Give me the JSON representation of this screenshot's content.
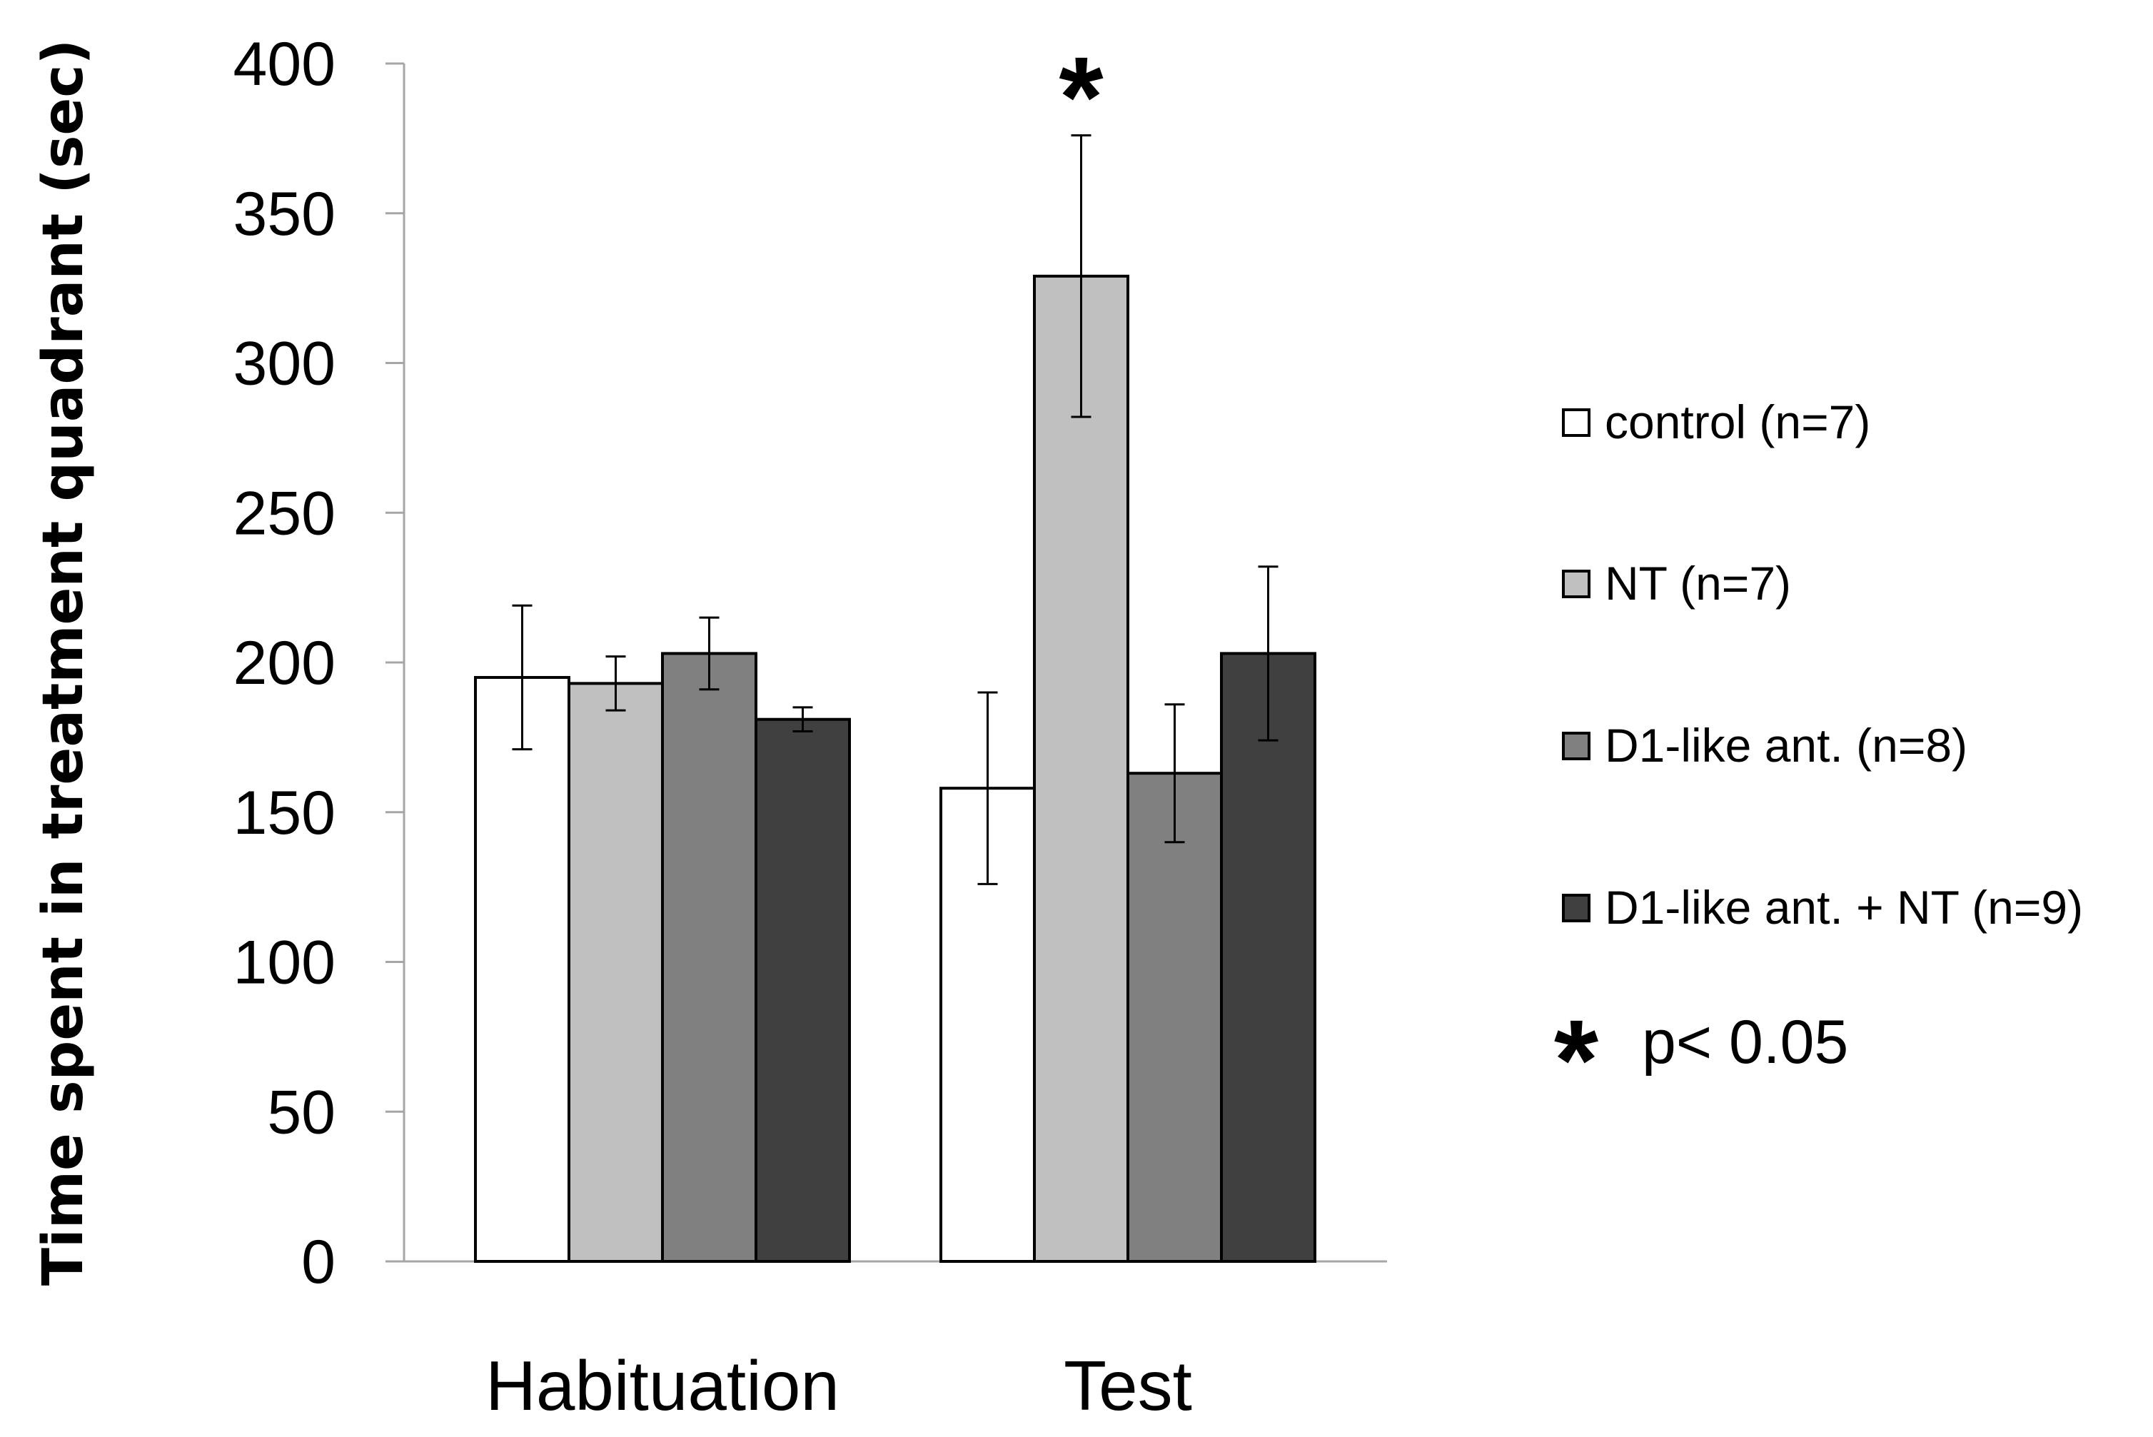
{
  "chart_data": {
    "type": "bar",
    "title": "",
    "xlabel": "",
    "ylabel": "Time spent in treatment quadrant (sec)",
    "ylim": [
      0,
      400
    ],
    "yticks": [
      0,
      50,
      100,
      150,
      200,
      250,
      300,
      350,
      400
    ],
    "grid": false,
    "categories": [
      "Habituation",
      "Test"
    ],
    "series": [
      {
        "name": "control (n=7)",
        "color": "#ffffff",
        "values": [
          195,
          158
        ],
        "errors": [
          24,
          32
        ]
      },
      {
        "name": "NT (n=7)",
        "color": "#c0c0c0",
        "values": [
          193,
          329
        ],
        "errors": [
          9,
          47
        ]
      },
      {
        "name": "D1-like ant. (n=8)",
        "color": "#808080",
        "values": [
          203,
          163
        ],
        "errors": [
          12,
          23
        ]
      },
      {
        "name": "D1-like ant. + NT (n=9)",
        "color": "#404040",
        "values": [
          181,
          203
        ],
        "errors": [
          4,
          29
        ]
      }
    ],
    "annotations": [
      {
        "text": "*",
        "category": "Test",
        "series": "NT (n=7)",
        "value": 400
      }
    ],
    "legend": {
      "position": "right",
      "significance_symbol": "*",
      "significance_label": "p< 0.05"
    }
  }
}
